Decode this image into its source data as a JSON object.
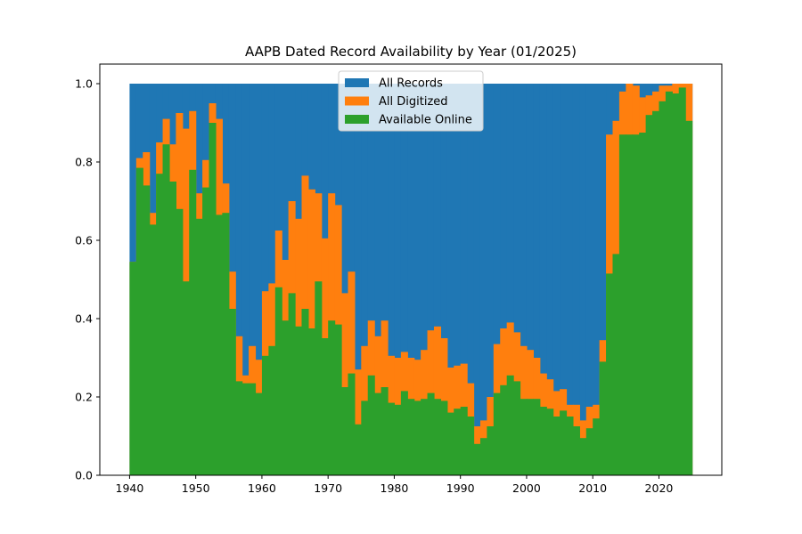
{
  "chart_data": {
    "type": "bar",
    "title": "AAPB Dated Record Availability by Year (01/2025)",
    "xlabel": "",
    "ylabel": "",
    "xlim": [
      1935.5,
      2029.5
    ],
    "ylim": [
      0.0,
      1.05
    ],
    "x_ticks": [
      1940,
      1950,
      1960,
      1970,
      1980,
      1990,
      2000,
      2010,
      2020
    ],
    "y_ticks": [
      0.0,
      0.2,
      0.4,
      0.6,
      0.8,
      1.0
    ],
    "x_tick_labels": [
      "1940",
      "1950",
      "1960",
      "1970",
      "1980",
      "1990",
      "2000",
      "2010",
      "2020"
    ],
    "y_tick_labels": [
      "0.0",
      "0.2",
      "0.4",
      "0.6",
      "0.8",
      "1.0"
    ],
    "grid": false,
    "legend_position": "top-center",
    "years": [
      1940,
      1941,
      1942,
      1943,
      1944,
      1945,
      1946,
      1947,
      1948,
      1949,
      1950,
      1951,
      1952,
      1953,
      1954,
      1955,
      1956,
      1957,
      1958,
      1959,
      1960,
      1961,
      1962,
      1963,
      1964,
      1965,
      1966,
      1967,
      1968,
      1969,
      1970,
      1971,
      1972,
      1973,
      1974,
      1975,
      1976,
      1977,
      1978,
      1979,
      1980,
      1981,
      1982,
      1983,
      1984,
      1985,
      1986,
      1987,
      1988,
      1989,
      1990,
      1991,
      1992,
      1993,
      1994,
      1995,
      1996,
      1997,
      1998,
      1999,
      2000,
      2001,
      2002,
      2003,
      2004,
      2005,
      2006,
      2007,
      2008,
      2009,
      2010,
      2011,
      2012,
      2013,
      2014,
      2015,
      2016,
      2017,
      2018,
      2019,
      2020,
      2021,
      2022,
      2023,
      2024
    ],
    "series": [
      {
        "name": "All Records",
        "color": "#1f77b4",
        "values": [
          1,
          1,
          1,
          1,
          1,
          1,
          1,
          1,
          1,
          1,
          1,
          1,
          1,
          1,
          1,
          1,
          1,
          1,
          1,
          1,
          1,
          1,
          1,
          1,
          1,
          1,
          1,
          1,
          1,
          1,
          1,
          1,
          1,
          1,
          1,
          1,
          1,
          1,
          1,
          1,
          1,
          1,
          1,
          1,
          1,
          1,
          1,
          1,
          1,
          1,
          1,
          1,
          1,
          1,
          1,
          1,
          1,
          1,
          1,
          1,
          1,
          1,
          1,
          1,
          1,
          1,
          1,
          1,
          1,
          1,
          1,
          1,
          1,
          1,
          1,
          1,
          1,
          1,
          1,
          1,
          1,
          1,
          1,
          1,
          1
        ]
      },
      {
        "name": "All Digitized",
        "color": "#ff7f0e",
        "values": [
          0.545,
          0.81,
          0.825,
          0.67,
          0.85,
          0.91,
          0.845,
          0.925,
          0.885,
          0.93,
          0.72,
          0.805,
          0.95,
          0.91,
          0.745,
          0.52,
          0.355,
          0.255,
          0.33,
          0.295,
          0.47,
          0.49,
          0.625,
          0.55,
          0.7,
          0.655,
          0.765,
          0.73,
          0.72,
          0.605,
          0.72,
          0.69,
          0.465,
          0.52,
          0.27,
          0.33,
          0.395,
          0.355,
          0.395,
          0.305,
          0.3,
          0.315,
          0.3,
          0.295,
          0.32,
          0.37,
          0.38,
          0.35,
          0.275,
          0.28,
          0.285,
          0.235,
          0.125,
          0.14,
          0.2,
          0.335,
          0.375,
          0.39,
          0.365,
          0.33,
          0.32,
          0.3,
          0.26,
          0.245,
          0.215,
          0.22,
          0.18,
          0.18,
          0.14,
          0.175,
          0.18,
          0.345,
          0.87,
          0.905,
          0.98,
          1.0,
          0.995,
          0.965,
          0.97,
          0.98,
          0.995,
          0.995,
          1.0,
          1.0,
          1.0
        ]
      },
      {
        "name": "Available Online",
        "color": "#2ca02c",
        "values": [
          0.545,
          0.785,
          0.74,
          0.64,
          0.77,
          0.845,
          0.75,
          0.68,
          0.495,
          0.78,
          0.655,
          0.735,
          0.9,
          0.665,
          0.67,
          0.425,
          0.24,
          0.235,
          0.235,
          0.21,
          0.305,
          0.33,
          0.48,
          0.395,
          0.465,
          0.38,
          0.425,
          0.375,
          0.495,
          0.35,
          0.395,
          0.385,
          0.225,
          0.26,
          0.13,
          0.19,
          0.255,
          0.21,
          0.225,
          0.185,
          0.18,
          0.215,
          0.195,
          0.19,
          0.195,
          0.21,
          0.195,
          0.19,
          0.16,
          0.17,
          0.175,
          0.15,
          0.08,
          0.095,
          0.125,
          0.21,
          0.23,
          0.255,
          0.24,
          0.195,
          0.195,
          0.195,
          0.175,
          0.17,
          0.15,
          0.165,
          0.15,
          0.125,
          0.095,
          0.12,
          0.145,
          0.29,
          0.515,
          0.565,
          0.87,
          0.87,
          0.87,
          0.875,
          0.92,
          0.93,
          0.955,
          0.98,
          0.975,
          0.99,
          0.905
        ]
      }
    ]
  }
}
